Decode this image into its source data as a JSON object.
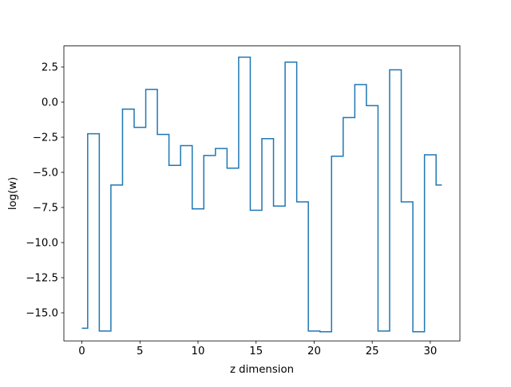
{
  "chart_data": {
    "type": "line",
    "drawstyle": "steps-mid",
    "xlabel": "z dimension",
    "ylabel": "log(w)",
    "xlim": [
      -1.55,
      32.55
    ],
    "ylim": [
      -17.0,
      4.0
    ],
    "xticks": [
      0,
      5,
      10,
      15,
      20,
      25,
      30
    ],
    "yticks": [
      2.5,
      0.0,
      -2.5,
      -5.0,
      -7.5,
      -10.0,
      -12.5,
      -15.0
    ],
    "ytick_labels": [
      "2.5",
      "0.0",
      "−2.5",
      "−5.0",
      "−7.5",
      "−10.0",
      "−12.5",
      "−15.0"
    ],
    "grid": false,
    "color": "#1f77b4",
    "series": [
      {
        "x": [
          0,
          1,
          2,
          3,
          4,
          5,
          6,
          7,
          8,
          9,
          10,
          11,
          12,
          13,
          14,
          15,
          16,
          17,
          18,
          19,
          20,
          21,
          22,
          23,
          24,
          25,
          26,
          27,
          28,
          29,
          30,
          31
        ],
        "values": [
          -16.1,
          -2.25,
          -16.3,
          -5.9,
          -0.5,
          -1.8,
          0.9,
          -2.3,
          -4.5,
          -3.1,
          -7.6,
          -3.8,
          -3.3,
          -4.7,
          3.2,
          -7.7,
          -2.6,
          -7.4,
          2.85,
          -7.1,
          -16.3,
          -16.35,
          -3.85,
          -1.1,
          1.25,
          -0.25,
          -16.3,
          2.3,
          -7.1,
          -16.35,
          -3.75,
          -5.9
        ]
      }
    ]
  }
}
